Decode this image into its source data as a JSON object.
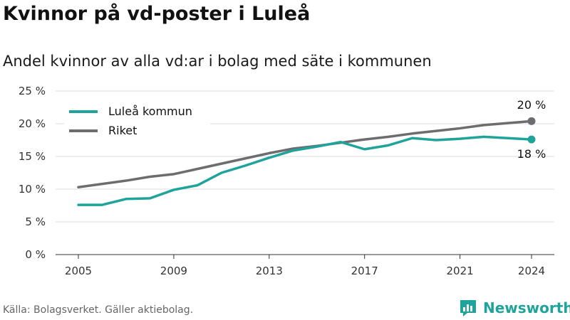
{
  "title": "Kvinnor på vd-poster i Luleå",
  "subtitle": "Andel kvinnor av alla vd:ar i bolag med säte i kommunen",
  "source": "Källa: Bolagsverket. Gäller aktiebolag.",
  "brand": "Newsworthy",
  "colors": {
    "lulea": "#1fa39a",
    "riket": "#6d6d70",
    "grid": "#dddddd",
    "brand": "#1fa39a"
  },
  "chart_data": {
    "type": "line",
    "x": [
      2005,
      2006,
      2007,
      2008,
      2009,
      2010,
      2011,
      2012,
      2013,
      2014,
      2015,
      2016,
      2017,
      2018,
      2019,
      2020,
      2021,
      2022,
      2023,
      2024
    ],
    "series": [
      {
        "name": "Luleå kommun",
        "values": [
          7.6,
          7.6,
          8.5,
          8.6,
          9.9,
          10.6,
          12.5,
          13.6,
          14.8,
          15.9,
          16.5,
          17.2,
          16.1,
          16.7,
          17.8,
          17.5,
          17.7,
          18.0,
          17.8,
          17.6
        ]
      },
      {
        "name": "Riket",
        "values": [
          10.3,
          10.8,
          11.3,
          11.9,
          12.3,
          13.1,
          13.9,
          14.7,
          15.5,
          16.2,
          16.6,
          17.1,
          17.6,
          18.0,
          18.5,
          18.9,
          19.3,
          19.8,
          20.1,
          20.4
        ]
      }
    ],
    "x_ticks": [
      "2005",
      "2009",
      "2013",
      "2017",
      "2021",
      "2024"
    ],
    "y_ticks": [
      "0 %",
      "5 %",
      "10 %",
      "15 %",
      "20 %",
      "25 %"
    ],
    "end_labels": {
      "riket": "20 %",
      "lulea": "18 %"
    },
    "ylim": [
      0,
      25
    ],
    "grid": true,
    "legend": "top-left"
  }
}
